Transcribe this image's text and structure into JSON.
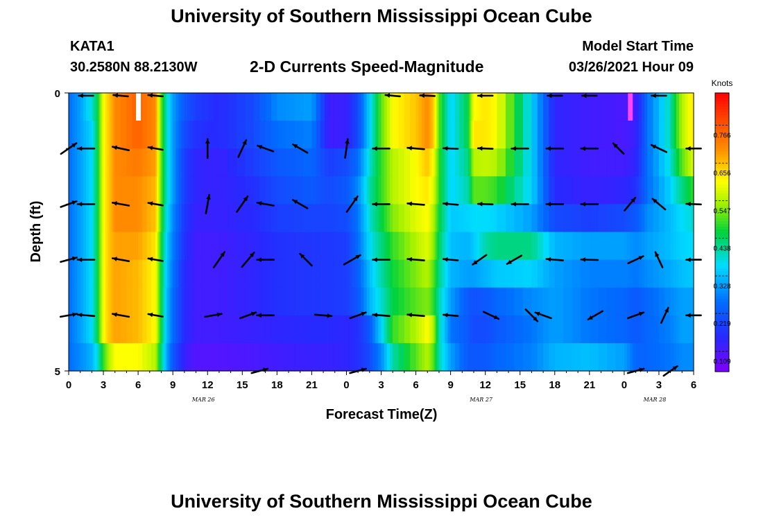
{
  "header": {
    "title": "University of Southern Mississippi Ocean Cube",
    "station": "KATA1",
    "coordinates": "30.2580N 88.2130W",
    "subtitle": "2-D Currents Speed-Magnitude",
    "model_start_label": "Model Start Time",
    "model_start_value": "03/26/2021 Hour 09"
  },
  "footer": {
    "title": "University of Southern Mississippi Ocean Cube"
  },
  "chart_data": {
    "type": "heatmap",
    "title": "2-D Currents Speed-Magnitude",
    "xlabel": "Forecast Time(Z)",
    "ylabel": "Depth (ft)",
    "x_tick_labels": [
      "0",
      "3",
      "6",
      "9",
      "12",
      "15",
      "18",
      "21",
      "0",
      "3",
      "6",
      "9",
      "12",
      "15",
      "18",
      "21",
      "0",
      "3",
      "6"
    ],
    "date_labels": [
      {
        "label": "MAR 26",
        "at_hour": 12
      },
      {
        "label": "MAR 27",
        "at_hour": 36
      },
      {
        "label": "MAR 28",
        "at_hour": 51
      }
    ],
    "x_range_hours": [
      0,
      54
    ],
    "y_tick_labels": [
      "0",
      "5"
    ],
    "y_range_ft": [
      0,
      5
    ],
    "colorbar": {
      "unit": "Knots",
      "range": [
        0.05,
        0.86
      ],
      "tick_values": [
        0.766,
        0.656,
        0.547,
        0.438,
        0.328,
        0.219,
        0.109
      ],
      "tick_labels": [
        "0.766",
        "0.656",
        "0.547",
        "0.438",
        "0.328",
        "0.219",
        "0.109"
      ]
    },
    "speed_profile_knots": {
      "hours": [
        0,
        1,
        2,
        2.5,
        3,
        3.5,
        4,
        6,
        7.5,
        8,
        8.5,
        9,
        10,
        11,
        13,
        16,
        18,
        21,
        22.5,
        24,
        25,
        26,
        27,
        28,
        30,
        31,
        31.5,
        32,
        33,
        34.5,
        35,
        36,
        37,
        40,
        42,
        45,
        48,
        49,
        50,
        52,
        53,
        54
      ],
      "depth_rows": [
        {
          "depth_ft": 0.25,
          "speeds": [
            0.25,
            0.3,
            0.38,
            0.45,
            0.6,
            0.65,
            0.7,
            0.75,
            0.7,
            0.5,
            0.38,
            0.3,
            0.22,
            0.18,
            0.15,
            0.2,
            0.28,
            0.3,
            0.12,
            0.13,
            0.2,
            0.35,
            0.5,
            0.6,
            0.65,
            0.7,
            0.65,
            0.5,
            0.35,
            0.45,
            0.6,
            0.62,
            0.6,
            0.35,
            0.14,
            0.12,
            0.11,
            0.12,
            0.25,
            0.4,
            0.55,
            0.62
          ]
        },
        {
          "depth_ft": 0.75,
          "speeds": [
            0.25,
            0.3,
            0.35,
            0.45,
            0.6,
            0.65,
            0.7,
            0.75,
            0.7,
            0.5,
            0.38,
            0.3,
            0.2,
            0.16,
            0.15,
            0.2,
            0.25,
            0.27,
            0.12,
            0.13,
            0.2,
            0.35,
            0.5,
            0.6,
            0.65,
            0.7,
            0.65,
            0.5,
            0.35,
            0.45,
            0.62,
            0.62,
            0.6,
            0.35,
            0.14,
            0.12,
            0.11,
            0.13,
            0.25,
            0.4,
            0.55,
            0.62
          ]
        },
        {
          "depth_ft": 1.25,
          "speeds": [
            0.25,
            0.3,
            0.36,
            0.45,
            0.6,
            0.65,
            0.7,
            0.72,
            0.68,
            0.5,
            0.38,
            0.3,
            0.18,
            0.14,
            0.13,
            0.18,
            0.22,
            0.24,
            0.18,
            0.2,
            0.25,
            0.38,
            0.48,
            0.55,
            0.6,
            0.65,
            0.6,
            0.48,
            0.35,
            0.42,
            0.55,
            0.56,
            0.55,
            0.35,
            0.14,
            0.12,
            0.12,
            0.14,
            0.25,
            0.38,
            0.5,
            0.58
          ]
        },
        {
          "depth_ft": 1.75,
          "speeds": [
            0.25,
            0.3,
            0.36,
            0.45,
            0.6,
            0.65,
            0.7,
            0.7,
            0.66,
            0.5,
            0.38,
            0.3,
            0.18,
            0.14,
            0.13,
            0.16,
            0.2,
            0.22,
            0.2,
            0.22,
            0.28,
            0.4,
            0.48,
            0.55,
            0.6,
            0.62,
            0.58,
            0.48,
            0.35,
            0.4,
            0.5,
            0.5,
            0.48,
            0.35,
            0.15,
            0.13,
            0.14,
            0.16,
            0.25,
            0.35,
            0.42,
            0.48
          ]
        },
        {
          "depth_ft": 2.25,
          "speeds": [
            0.25,
            0.3,
            0.36,
            0.45,
            0.6,
            0.65,
            0.7,
            0.7,
            0.65,
            0.48,
            0.36,
            0.28,
            0.17,
            0.13,
            0.13,
            0.15,
            0.18,
            0.19,
            0.19,
            0.2,
            0.26,
            0.38,
            0.45,
            0.52,
            0.58,
            0.6,
            0.55,
            0.46,
            0.34,
            0.35,
            0.36,
            0.36,
            0.35,
            0.3,
            0.2,
            0.18,
            0.2,
            0.22,
            0.28,
            0.33,
            0.36,
            0.38
          ]
        },
        {
          "depth_ft": 2.75,
          "speeds": [
            0.25,
            0.3,
            0.36,
            0.45,
            0.6,
            0.65,
            0.68,
            0.68,
            0.62,
            0.46,
            0.34,
            0.27,
            0.16,
            0.12,
            0.12,
            0.14,
            0.16,
            0.17,
            0.17,
            0.18,
            0.25,
            0.36,
            0.42,
            0.48,
            0.55,
            0.58,
            0.53,
            0.44,
            0.33,
            0.32,
            0.34,
            0.4,
            0.42,
            0.42,
            0.32,
            0.3,
            0.3,
            0.28,
            0.3,
            0.33,
            0.35,
            0.36
          ]
        },
        {
          "depth_ft": 3.25,
          "speeds": [
            0.25,
            0.3,
            0.36,
            0.45,
            0.6,
            0.65,
            0.68,
            0.66,
            0.6,
            0.45,
            0.33,
            0.26,
            0.15,
            0.12,
            0.12,
            0.14,
            0.16,
            0.17,
            0.17,
            0.18,
            0.23,
            0.33,
            0.4,
            0.46,
            0.52,
            0.55,
            0.5,
            0.42,
            0.32,
            0.3,
            0.3,
            0.32,
            0.34,
            0.35,
            0.3,
            0.27,
            0.27,
            0.26,
            0.28,
            0.31,
            0.33,
            0.34
          ]
        },
        {
          "depth_ft": 3.75,
          "speeds": [
            0.25,
            0.3,
            0.36,
            0.45,
            0.6,
            0.65,
            0.68,
            0.66,
            0.6,
            0.45,
            0.32,
            0.25,
            0.15,
            0.12,
            0.12,
            0.14,
            0.16,
            0.17,
            0.17,
            0.18,
            0.22,
            0.32,
            0.38,
            0.45,
            0.5,
            0.52,
            0.48,
            0.4,
            0.3,
            0.22,
            0.21,
            0.22,
            0.24,
            0.28,
            0.3,
            0.26,
            0.24,
            0.22,
            0.24,
            0.28,
            0.3,
            0.3
          ]
        },
        {
          "depth_ft": 4.25,
          "speeds": [
            0.25,
            0.3,
            0.36,
            0.45,
            0.6,
            0.65,
            0.68,
            0.66,
            0.6,
            0.45,
            0.32,
            0.25,
            0.15,
            0.12,
            0.12,
            0.13,
            0.14,
            0.15,
            0.15,
            0.14,
            0.16,
            0.22,
            0.35,
            0.48,
            0.55,
            0.6,
            0.55,
            0.4,
            0.26,
            0.22,
            0.2,
            0.2,
            0.22,
            0.26,
            0.3,
            0.26,
            0.24,
            0.22,
            0.24,
            0.27,
            0.3,
            0.3
          ]
        },
        {
          "depth_ft": 4.75,
          "speeds": [
            0.25,
            0.28,
            0.32,
            0.38,
            0.48,
            0.55,
            0.6,
            0.6,
            0.55,
            0.42,
            0.3,
            0.22,
            0.13,
            0.1,
            0.1,
            0.11,
            0.12,
            0.13,
            0.13,
            0.14,
            0.16,
            0.2,
            0.28,
            0.4,
            0.5,
            0.55,
            0.5,
            0.4,
            0.3,
            0.22,
            0.22,
            0.22,
            0.24,
            0.27,
            0.32,
            0.33,
            0.3,
            0.24,
            0.24,
            0.26,
            0.28,
            0.28
          ]
        }
      ]
    },
    "vectors_note": "angles in degrees, 0 = pointing right (east), measured counter-clockwise; length relative",
    "vectors": [
      {
        "hour": 0,
        "depth_ft": 1.0,
        "angle": 35,
        "length": 0.9
      },
      {
        "hour": 1.5,
        "depth_ft": 1.0,
        "angle": 180,
        "length": 0.8
      },
      {
        "hour": 4.5,
        "depth_ft": 1.0,
        "angle": 168,
        "length": 0.8
      },
      {
        "hour": 7.5,
        "depth_ft": 1.0,
        "angle": 170,
        "length": 0.7
      },
      {
        "hour": 12,
        "depth_ft": 1.0,
        "angle": 90,
        "length": 0.9
      },
      {
        "hour": 15,
        "depth_ft": 1.0,
        "angle": 65,
        "length": 0.9
      },
      {
        "hour": 17,
        "depth_ft": 1.0,
        "angle": 160,
        "length": 0.8
      },
      {
        "hour": 20,
        "depth_ft": 1.0,
        "angle": 150,
        "length": 0.8
      },
      {
        "hour": 24,
        "depth_ft": 1.0,
        "angle": 82,
        "length": 0.9
      },
      {
        "hour": 27,
        "depth_ft": 1.0,
        "angle": 180,
        "length": 0.8
      },
      {
        "hour": 30,
        "depth_ft": 1.0,
        "angle": 175,
        "length": 0.8
      },
      {
        "hour": 33,
        "depth_ft": 1.0,
        "angle": 178,
        "length": 0.7
      },
      {
        "hour": 36,
        "depth_ft": 1.0,
        "angle": 178,
        "length": 0.7
      },
      {
        "hour": 39,
        "depth_ft": 1.0,
        "angle": 180,
        "length": 0.8
      },
      {
        "hour": 42,
        "depth_ft": 1.0,
        "angle": 180,
        "length": 0.8
      },
      {
        "hour": 45,
        "depth_ft": 1.0,
        "angle": 180,
        "length": 0.8
      },
      {
        "hour": 47.5,
        "depth_ft": 1.0,
        "angle": 135,
        "length": 0.7
      },
      {
        "hour": 51,
        "depth_ft": 1.0,
        "angle": 155,
        "length": 0.8
      },
      {
        "hour": 54,
        "depth_ft": 1.0,
        "angle": 180,
        "length": 0.7
      },
      {
        "hour": 0,
        "depth_ft": 2.0,
        "angle": 20,
        "length": 0.8
      },
      {
        "hour": 1.5,
        "depth_ft": 2.0,
        "angle": 180,
        "length": 0.8
      },
      {
        "hour": 4.5,
        "depth_ft": 2.0,
        "angle": 170,
        "length": 0.8
      },
      {
        "hour": 7.5,
        "depth_ft": 2.0,
        "angle": 170,
        "length": 0.7
      },
      {
        "hour": 12,
        "depth_ft": 2.0,
        "angle": 80,
        "length": 0.9
      },
      {
        "hour": 15,
        "depth_ft": 2.0,
        "angle": 55,
        "length": 0.9
      },
      {
        "hour": 17,
        "depth_ft": 2.0,
        "angle": 170,
        "length": 0.8
      },
      {
        "hour": 20,
        "depth_ft": 2.0,
        "angle": 150,
        "length": 0.8
      },
      {
        "hour": 24.5,
        "depth_ft": 2.0,
        "angle": 55,
        "length": 0.9
      },
      {
        "hour": 27,
        "depth_ft": 2.0,
        "angle": 180,
        "length": 0.8
      },
      {
        "hour": 30,
        "depth_ft": 2.0,
        "angle": 175,
        "length": 0.8
      },
      {
        "hour": 33,
        "depth_ft": 2.0,
        "angle": 175,
        "length": 0.7
      },
      {
        "hour": 36,
        "depth_ft": 2.0,
        "angle": 178,
        "length": 0.7
      },
      {
        "hour": 39,
        "depth_ft": 2.0,
        "angle": 180,
        "length": 0.8
      },
      {
        "hour": 42,
        "depth_ft": 2.0,
        "angle": 180,
        "length": 0.8
      },
      {
        "hour": 45,
        "depth_ft": 2.0,
        "angle": 180,
        "length": 0.8
      },
      {
        "hour": 48.5,
        "depth_ft": 2.0,
        "angle": 50,
        "length": 0.8
      },
      {
        "hour": 51,
        "depth_ft": 2.0,
        "angle": 140,
        "length": 0.8
      },
      {
        "hour": 54,
        "depth_ft": 2.0,
        "angle": 178,
        "length": 0.7
      },
      {
        "hour": 0,
        "depth_ft": 3.0,
        "angle": 15,
        "length": 0.8
      },
      {
        "hour": 1.5,
        "depth_ft": 3.0,
        "angle": 180,
        "length": 0.8
      },
      {
        "hour": 4.5,
        "depth_ft": 3.0,
        "angle": 170,
        "length": 0.8
      },
      {
        "hour": 7.5,
        "depth_ft": 3.0,
        "angle": 170,
        "length": 0.7
      },
      {
        "hour": 13,
        "depth_ft": 3.0,
        "angle": 55,
        "length": 0.9
      },
      {
        "hour": 15.5,
        "depth_ft": 3.0,
        "angle": 50,
        "length": 0.9
      },
      {
        "hour": 17,
        "depth_ft": 3.0,
        "angle": 180,
        "length": 0.8
      },
      {
        "hour": 20.5,
        "depth_ft": 3.0,
        "angle": 135,
        "length": 0.8
      },
      {
        "hour": 24.5,
        "depth_ft": 3.0,
        "angle": 30,
        "length": 0.9
      },
      {
        "hour": 27,
        "depth_ft": 3.0,
        "angle": 180,
        "length": 0.8
      },
      {
        "hour": 30,
        "depth_ft": 3.0,
        "angle": 175,
        "length": 0.8
      },
      {
        "hour": 33,
        "depth_ft": 3.0,
        "angle": 175,
        "length": 0.7
      },
      {
        "hour": 35.5,
        "depth_ft": 3.0,
        "angle": 215,
        "length": 0.8
      },
      {
        "hour": 38.5,
        "depth_ft": 3.0,
        "angle": 210,
        "length": 0.8
      },
      {
        "hour": 42,
        "depth_ft": 3.0,
        "angle": 175,
        "length": 0.8
      },
      {
        "hour": 45,
        "depth_ft": 3.0,
        "angle": 178,
        "length": 0.8
      },
      {
        "hour": 49,
        "depth_ft": 3.0,
        "angle": 25,
        "length": 0.8
      },
      {
        "hour": 51,
        "depth_ft": 3.0,
        "angle": 115,
        "length": 0.8
      },
      {
        "hour": 54,
        "depth_ft": 3.0,
        "angle": 180,
        "length": 0.7
      },
      {
        "hour": 0,
        "depth_ft": 4.0,
        "angle": 10,
        "length": 0.8
      },
      {
        "hour": 1.5,
        "depth_ft": 4.0,
        "angle": 175,
        "length": 0.8
      },
      {
        "hour": 4.5,
        "depth_ft": 4.0,
        "angle": 170,
        "length": 0.8
      },
      {
        "hour": 7.5,
        "depth_ft": 4.0,
        "angle": 170,
        "length": 0.7
      },
      {
        "hour": 12.5,
        "depth_ft": 4.0,
        "angle": 10,
        "length": 0.8
      },
      {
        "hour": 15.5,
        "depth_ft": 4.0,
        "angle": 20,
        "length": 0.8
      },
      {
        "hour": 17,
        "depth_ft": 4.0,
        "angle": 180,
        "length": 0.8
      },
      {
        "hour": 22,
        "depth_ft": 4.0,
        "angle": 355,
        "length": 0.8
      },
      {
        "hour": 25,
        "depth_ft": 4.0,
        "angle": 20,
        "length": 0.8
      },
      {
        "hour": 27,
        "depth_ft": 4.0,
        "angle": 175,
        "length": 0.8
      },
      {
        "hour": 30,
        "depth_ft": 4.0,
        "angle": 175,
        "length": 0.8
      },
      {
        "hour": 33,
        "depth_ft": 4.0,
        "angle": 175,
        "length": 0.7
      },
      {
        "hour": 36.5,
        "depth_ft": 4.0,
        "angle": 335,
        "length": 0.8
      },
      {
        "hour": 40,
        "depth_ft": 4.0,
        "angle": 315,
        "length": 0.8
      },
      {
        "hour": 41,
        "depth_ft": 4.0,
        "angle": 160,
        "length": 0.8
      },
      {
        "hour": 45.5,
        "depth_ft": 4.0,
        "angle": 210,
        "length": 0.8
      },
      {
        "hour": 49,
        "depth_ft": 4.0,
        "angle": 20,
        "length": 0.8
      },
      {
        "hour": 51.5,
        "depth_ft": 4.0,
        "angle": 65,
        "length": 0.8
      },
      {
        "hour": 54,
        "depth_ft": 4.0,
        "angle": 180,
        "length": 0.7
      },
      {
        "hour": 16.5,
        "depth_ft": 5.0,
        "angle": 15,
        "length": 0.8
      },
      {
        "hour": 25,
        "depth_ft": 5.0,
        "angle": 15,
        "length": 0.8
      },
      {
        "hour": 49,
        "depth_ft": 5.0,
        "angle": 15,
        "length": 0.8
      },
      {
        "hour": 52,
        "depth_ft": 5.0,
        "angle": 35,
        "length": 0.8
      }
    ],
    "surface_row_vectors": [
      {
        "hour": 1.5,
        "angle": 180
      },
      {
        "hour": 4.5,
        "angle": 175
      },
      {
        "hour": 7.5,
        "angle": 175
      },
      {
        "hour": 28,
        "angle": 175
      },
      {
        "hour": 31,
        "angle": 178
      },
      {
        "hour": 36,
        "angle": 180
      },
      {
        "hour": 42,
        "angle": 180
      },
      {
        "hour": 45,
        "angle": 180
      },
      {
        "hour": 51,
        "angle": 180
      }
    ],
    "missing_data_marks": [
      {
        "hour": 6,
        "color": "#ffffff"
      },
      {
        "hour": 48.5,
        "color": "#ff44ff"
      }
    ]
  }
}
